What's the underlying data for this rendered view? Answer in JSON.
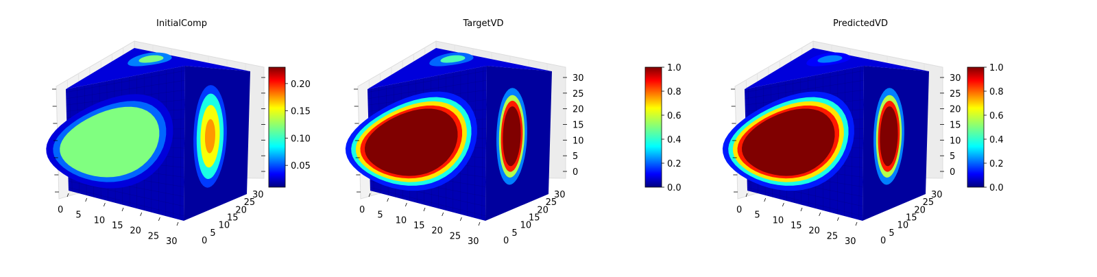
{
  "chart_data": [
    {
      "type": "3d-voxel",
      "title": "InitialComp",
      "x_ticks": [
        "0",
        "5",
        "10",
        "15",
        "20",
        "25",
        "30"
      ],
      "y_ticks": [
        "0",
        "5",
        "10",
        "15",
        "20",
        "25",
        "30"
      ],
      "z_ticks": [],
      "colormap": "jet",
      "colorbar": {
        "min": 0.01,
        "max": 0.23,
        "ticks": [
          "0.05",
          "0.10",
          "0.15",
          "0.20"
        ],
        "tick_values": [
          0.05,
          0.1,
          0.15,
          0.2
        ]
      },
      "front_blob_peak": 0.12,
      "side_blob_peak": 0.17,
      "top_blob_peak": 0.12
    },
    {
      "type": "3d-voxel",
      "title": "TargetVD",
      "x_ticks": [
        "0",
        "5",
        "10",
        "15",
        "20",
        "25",
        "30"
      ],
      "y_ticks": [
        "0",
        "5",
        "10",
        "15",
        "20",
        "25",
        "30"
      ],
      "z_ticks": [
        "0",
        "5",
        "10",
        "15",
        "20",
        "25",
        "30"
      ],
      "colormap": "jet",
      "colorbar": {
        "min": 0.0,
        "max": 1.0,
        "ticks": [
          "0.0",
          "0.2",
          "0.4",
          "0.6",
          "0.8",
          "1.0"
        ],
        "tick_values": [
          0.0,
          0.2,
          0.4,
          0.6,
          0.8,
          1.0
        ]
      },
      "front_blob_peak": 1.0,
      "side_blob_peak": 1.0,
      "top_blob_peak": 0.45
    },
    {
      "type": "3d-voxel",
      "title": "PredictedVD",
      "x_ticks": [
        "0",
        "5",
        "10",
        "15",
        "20",
        "25",
        "30"
      ],
      "y_ticks": [
        "0",
        "5",
        "10",
        "15",
        "20",
        "25",
        "30"
      ],
      "z_ticks": [
        "0",
        "5",
        "10",
        "15",
        "20",
        "25",
        "30"
      ],
      "colormap": "jet",
      "colorbar": {
        "min": 0.0,
        "max": 1.0,
        "ticks": [
          "0.0",
          "0.2",
          "0.4",
          "0.6",
          "0.8",
          "1.0"
        ],
        "tick_values": [
          0.0,
          0.2,
          0.4,
          0.6,
          0.8,
          1.0
        ]
      },
      "front_blob_peak": 1.0,
      "side_blob_peak": 1.0,
      "top_blob_peak": 0.25
    }
  ]
}
